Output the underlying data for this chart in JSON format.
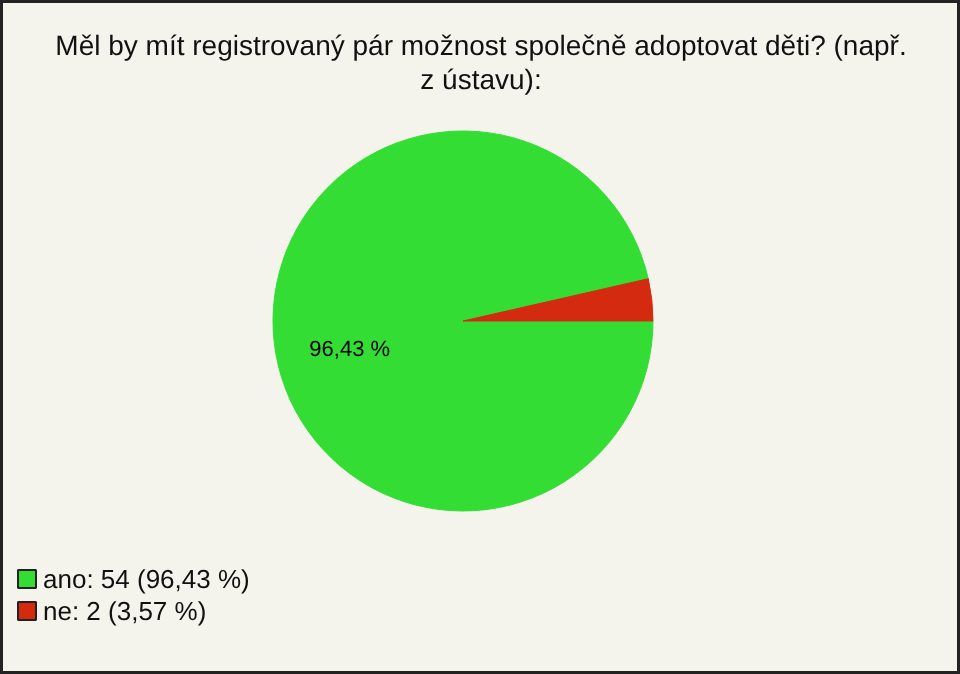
{
  "chart_data": {
    "type": "pie",
    "title": "Měl by mít registrovaný pár možnost společně adoptovat děti? (např.\nz ústavu):",
    "categories": [
      "ano: 54 (96,43 %)",
      "ne: 2 (3,57 %)"
    ],
    "values": [
      96.43,
      3.57
    ],
    "colors": [
      "#33dd33",
      "#d42a10"
    ],
    "value_labels": [
      "96,43 %",
      null
    ],
    "legend": "bottom left"
  }
}
